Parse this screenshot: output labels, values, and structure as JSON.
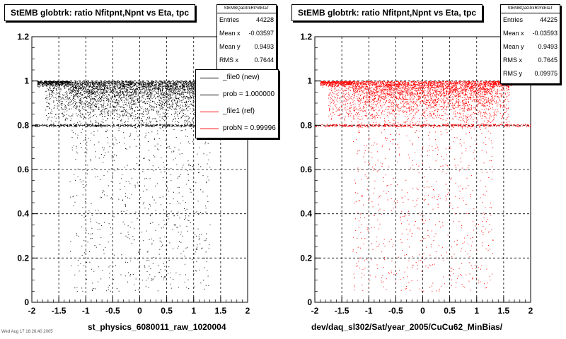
{
  "chart_data": [
    {
      "type": "scatter",
      "title": "StEMB globtrk: ratio Nfitpnt,Npnt vs Eta, tpc",
      "xlabel": "st_physics_6080011_raw_1020004",
      "ylabel": "",
      "xlim": [
        -2,
        2
      ],
      "ylim": [
        0,
        1.2
      ],
      "x_ticks": [
        "-2",
        "-1.5",
        "-1",
        "-0.5",
        "0",
        "0.5",
        "1",
        "1.5",
        "2"
      ],
      "y_ticks": [
        "0",
        "0.2",
        "0.4",
        "0.6",
        "0.8",
        "1",
        "1.2"
      ],
      "grid": true,
      "marker_color": "#000000",
      "series": [
        {
          "name": "_file0 (new)",
          "color": "#000000"
        },
        {
          "name": "_file1 (ref)",
          "color": "#ff0000"
        }
      ],
      "stats": {
        "name": "StEMBQaGtrkRPntEtaT",
        "rows": [
          {
            "label": "Entries",
            "value": "44228"
          },
          {
            "label": "Mean x",
            "value": "-0.03597"
          },
          {
            "label": "Mean y",
            "value": "0.9493"
          },
          {
            "label": "RMS x",
            "value": "0.7644"
          }
        ]
      },
      "legend": {
        "placement": "top-right",
        "entries": [
          {
            "label": "_file0 (new)",
            "color": "#000000"
          },
          {
            "label": "prob = 1.000000",
            "color": "#000000"
          },
          {
            "label": "_file1 (ref)",
            "color": "#ff0000"
          },
          {
            "label": "probN = 0.99996",
            "color": "#ff0000"
          }
        ]
      }
    },
    {
      "type": "scatter",
      "title": "StEMB globtrk: ratio Nfitpnt,Npnt vs Eta, tpc",
      "xlabel": "dev/daq_sl302/Sat/year_2005/CuCu62_MinBias/",
      "ylabel": "",
      "xlim": [
        -2,
        2
      ],
      "ylim": [
        0,
        1.2
      ],
      "x_ticks": [
        "-2",
        "-1.5",
        "-1",
        "-0.5",
        "0",
        "0.5",
        "1",
        "1.5",
        "2"
      ],
      "y_ticks": [
        "0",
        "0.2",
        "0.4",
        "0.6",
        "0.8",
        "1",
        "1.2"
      ],
      "grid": true,
      "marker_color": "#ff0000",
      "stats": {
        "name": "StEMBQaGtrkRPntEtaT",
        "rows": [
          {
            "label": "Entries",
            "value": "44225"
          },
          {
            "label": "Mean x",
            "value": "-0.03593"
          },
          {
            "label": "Mean y",
            "value": "0.9493"
          },
          {
            "label": "RMS x",
            "value": "0.7645"
          },
          {
            "label": "RMS y",
            "value": "0.09975"
          }
        ]
      }
    }
  ],
  "footnote": "Wed Aug 17 16:26:40 2005"
}
